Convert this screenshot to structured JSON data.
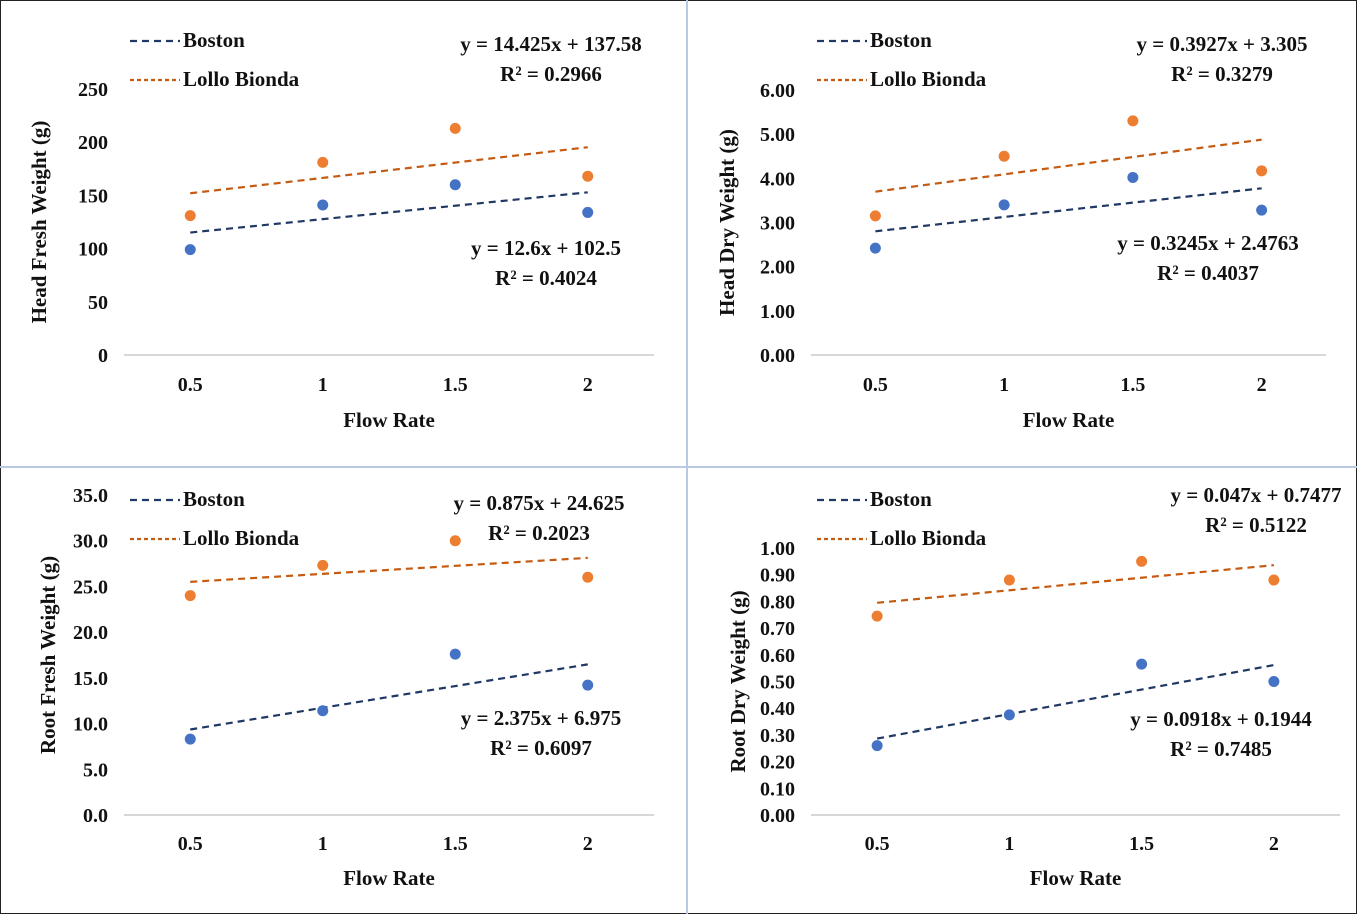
{
  "chart_data": [
    {
      "type": "scatter",
      "xlabel": "Flow Rate",
      "ylabel": "Head Fresh Weight (g)",
      "x": [
        0.5,
        1,
        1.5,
        2
      ],
      "x_tick_labels": [
        "0.5",
        "1",
        "1.5",
        "2"
      ],
      "ylim": [
        0,
        250
      ],
      "y_ticks": [
        0,
        50,
        100,
        150,
        200,
        250
      ],
      "y_tick_labels": [
        "0",
        "50",
        "100",
        "150",
        "200",
        "250"
      ],
      "grid": false,
      "legend_position": "top-left",
      "series": [
        {
          "name": "Boston",
          "values": [
            99,
            141,
            160,
            134
          ],
          "color": "#4472c4",
          "trend_color": "#203864",
          "trendline": {
            "slope": 12.6,
            "intercept": 102.5,
            "equation": "y = 12.6x + 102.5",
            "r2": "R² = 0.4024"
          }
        },
        {
          "name": "Lollo Bionda",
          "values": [
            131,
            181,
            213,
            168
          ],
          "color": "#ed7d31",
          "trend_color": "#c55a11",
          "trendline": {
            "slope": 14.425,
            "intercept": 137.58,
            "equation": "y = 14.425x + 137.58",
            "r2": "R² = 0.2966"
          }
        }
      ]
    },
    {
      "type": "scatter",
      "xlabel": "Flow Rate",
      "ylabel": "Head Dry Weight (g)",
      "x": [
        0.5,
        1,
        1.5,
        2
      ],
      "x_tick_labels": [
        "0.5",
        "1",
        "1.5",
        "2"
      ],
      "ylim": [
        0,
        6
      ],
      "y_ticks": [
        0,
        1,
        2,
        3,
        4,
        5,
        6
      ],
      "y_tick_labels": [
        "0.00",
        "1.00",
        "2.00",
        "3.00",
        "4.00",
        "5.00",
        "6.00"
      ],
      "grid": false,
      "legend_position": "top-left",
      "series": [
        {
          "name": "Boston",
          "values": [
            2.42,
            3.4,
            4.02,
            3.28
          ],
          "color": "#4472c4",
          "trend_color": "#203864",
          "trendline": {
            "slope": 0.3245,
            "intercept": 2.4763,
            "equation": "y = 0.3245x + 2.4763",
            "r2": "R² = 0.4037"
          }
        },
        {
          "name": "Lollo Bionda",
          "values": [
            3.15,
            4.5,
            5.3,
            4.17
          ],
          "color": "#ed7d31",
          "trend_color": "#c55a11",
          "trendline": {
            "slope": 0.3927,
            "intercept": 3.305,
            "equation": "y = 0.3927x + 3.305",
            "r2": "R² = 0.3279"
          }
        }
      ]
    },
    {
      "type": "scatter",
      "xlabel": "Flow Rate",
      "ylabel": "Root Fresh Weight (g)",
      "x": [
        0.5,
        1,
        1.5,
        2
      ],
      "x_tick_labels": [
        "0.5",
        "1",
        "1.5",
        "2"
      ],
      "ylim": [
        0,
        35
      ],
      "y_ticks": [
        0,
        5,
        10,
        15,
        20,
        25,
        30,
        35
      ],
      "y_tick_labels": [
        "0.0",
        "5.0",
        "10.0",
        "15.0",
        "20.0",
        "25.0",
        "30.0",
        "35.0"
      ],
      "grid": false,
      "legend_position": "top-left",
      "series": [
        {
          "name": "Boston",
          "values": [
            8.3,
            11.4,
            17.6,
            14.2
          ],
          "color": "#4472c4",
          "trend_color": "#203864",
          "trendline": {
            "slope": 2.375,
            "intercept": 6.975,
            "equation": "y = 2.375x + 6.975",
            "r2": "R² = 0.6097"
          }
        },
        {
          "name": "Lollo Bionda",
          "values": [
            24.0,
            27.3,
            30.0,
            26.0
          ],
          "color": "#ed7d31",
          "trend_color": "#c55a11",
          "trendline": {
            "slope": 0.875,
            "intercept": 24.625,
            "equation": "y = 0.875x + 24.625",
            "r2": "R² = 0.2023"
          }
        }
      ]
    },
    {
      "type": "scatter",
      "xlabel": "Flow Rate",
      "ylabel": "Root Dry Weight (g)",
      "x": [
        0.5,
        1,
        1.5,
        2
      ],
      "x_tick_labels": [
        "0.5",
        "1",
        "1.5",
        "2"
      ],
      "ylim": [
        0,
        1
      ],
      "y_ticks": [
        0,
        0.1,
        0.2,
        0.3,
        0.4,
        0.5,
        0.6,
        0.7,
        0.8,
        0.9,
        1.0
      ],
      "y_tick_labels": [
        "0.00",
        "0.10",
        "0.20",
        "0.30",
        "0.40",
        "0.50",
        "0.60",
        "0.70",
        "0.80",
        "0.90",
        "1.00"
      ],
      "grid": false,
      "legend_position": "top-left",
      "series": [
        {
          "name": "Boston",
          "values": [
            0.26,
            0.375,
            0.565,
            0.5
          ],
          "color": "#4472c4",
          "trend_color": "#203864",
          "trendline": {
            "slope": 0.0918,
            "intercept": 0.1944,
            "equation": "y = 0.0918x + 0.1944",
            "r2": "R² = 0.7485"
          }
        },
        {
          "name": "Lollo Bionda",
          "values": [
            0.745,
            0.88,
            0.95,
            0.88
          ],
          "color": "#ed7d31",
          "trend_color": "#c55a11",
          "trendline": {
            "slope": 0.047,
            "intercept": 0.7477,
            "equation": "y = 0.047x + 0.7477",
            "r2": "R² = 0.5122"
          }
        }
      ]
    }
  ]
}
